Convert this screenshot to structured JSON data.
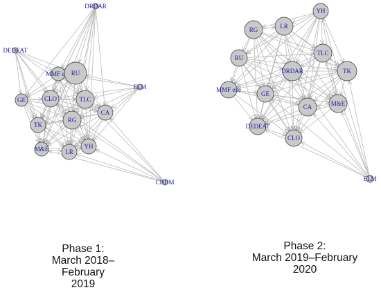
{
  "phase1": {
    "caption": [
      "Phase 1:",
      "March 2018–February",
      "2019"
    ],
    "nodes": [
      {
        "id": "DRDAR"
      },
      {
        "id": "DEDEAT"
      },
      {
        "id": "MMF exe"
      },
      {
        "id": "RU"
      },
      {
        "id": "ELM"
      },
      {
        "id": "GE"
      },
      {
        "id": "CLO"
      },
      {
        "id": "TLC"
      },
      {
        "id": "CA"
      },
      {
        "id": "TK"
      },
      {
        "id": "RG"
      },
      {
        "id": "M&E"
      },
      {
        "id": "LR"
      },
      {
        "id": "YH"
      },
      {
        "id": "CHDM"
      }
    ]
  },
  "phase2": {
    "caption": [
      "Phase 2:",
      "March 2019–February",
      "2020"
    ],
    "nodes": [
      {
        "id": "YH"
      },
      {
        "id": "RG"
      },
      {
        "id": "LR"
      },
      {
        "id": "RU"
      },
      {
        "id": "TLC"
      },
      {
        "id": "DRDAR"
      },
      {
        "id": "TK"
      },
      {
        "id": "MMF exe"
      },
      {
        "id": "GE"
      },
      {
        "id": "M&E"
      },
      {
        "id": "CA"
      },
      {
        "id": "DEDEAT"
      },
      {
        "id": "CLO"
      },
      {
        "id": "ELM"
      }
    ]
  }
}
